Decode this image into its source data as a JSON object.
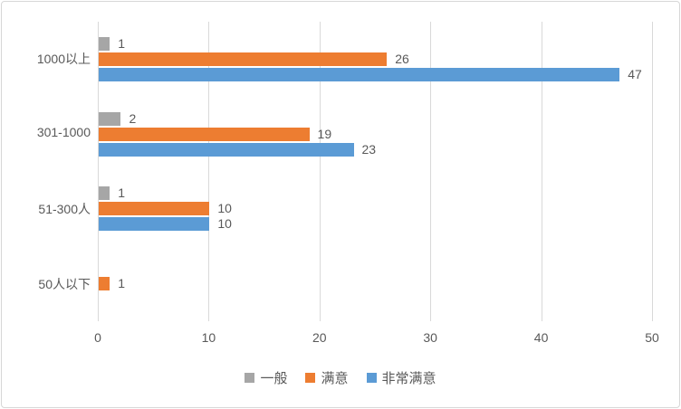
{
  "chart_data": {
    "type": "bar",
    "orientation": "horizontal",
    "title": "",
    "categories": [
      "1000以上",
      "301-1000",
      "51-300人",
      "50人以下"
    ],
    "series": [
      {
        "key": "average",
        "name": "一般",
        "color": "#A6A6A6",
        "values": [
          1,
          2,
          1,
          0
        ]
      },
      {
        "key": "satisfied",
        "name": "满意",
        "color": "#ED7D31",
        "values": [
          26,
          19,
          10,
          1
        ]
      },
      {
        "key": "very-satisfied",
        "name": "非常满意",
        "color": "#5B9BD5",
        "values": [
          47,
          23,
          10,
          0
        ]
      }
    ],
    "x_ticks": [
      "0",
      "10",
      "20",
      "30",
      "40",
      "50"
    ],
    "xlim": [
      0,
      50
    ],
    "grid": true,
    "data_labels": true,
    "legend_position": "bottom",
    "axis_text_color": "#595959",
    "grid_color": "#D9D9D9",
    "background_color": "#FFFFFF",
    "border_color": "#D7D7D7"
  }
}
